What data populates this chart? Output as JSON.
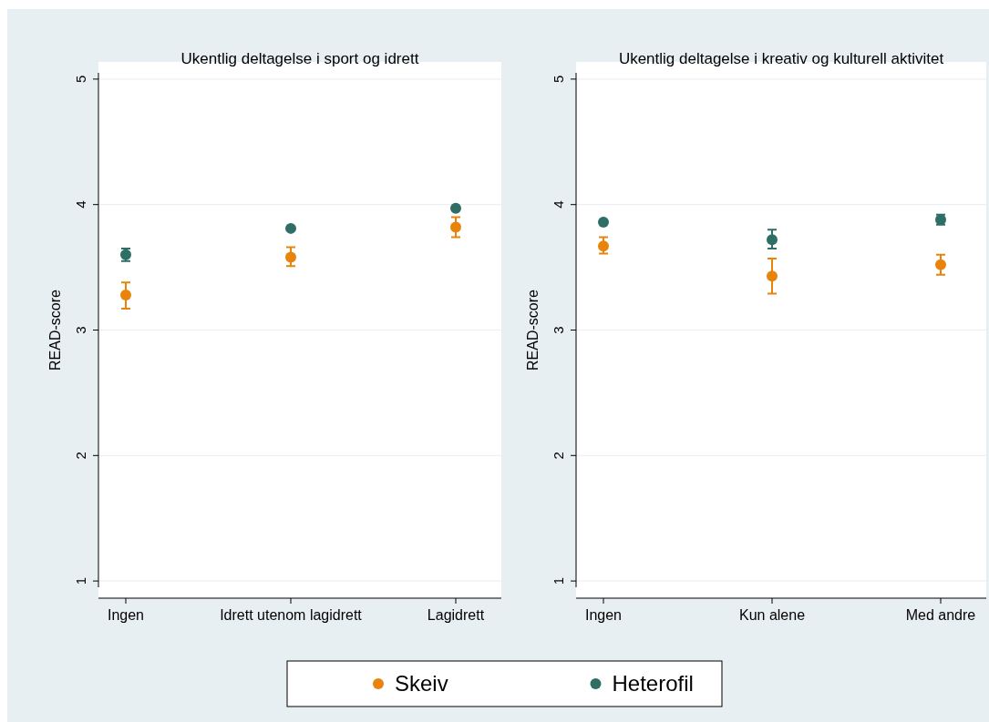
{
  "chart_data": [
    {
      "type": "scatter",
      "title": "Ukentlig deltagelse i sport og idrett",
      "ylabel": "READ-score",
      "categories": [
        "Ingen",
        "Idrett utenom lagidrett",
        "Lagidrett"
      ],
      "ylim": [
        0.95,
        5.05
      ],
      "yticks": [
        1,
        2,
        3,
        4,
        5
      ],
      "grid": "y",
      "marker": "circle",
      "legend": "bottom",
      "series": [
        {
          "name": "Skeiv",
          "color": "#e8840c",
          "values": [
            3.28,
            3.58,
            3.82
          ],
          "errors": [
            [
              3.17,
              3.38
            ],
            [
              3.51,
              3.66
            ],
            [
              3.74,
              3.9
            ]
          ]
        },
        {
          "name": "Heterofil",
          "color": "#2e6e65",
          "values": [
            3.6,
            3.81,
            3.97
          ],
          "errors": [
            [
              3.55,
              3.65
            ],
            null,
            null
          ]
        }
      ]
    },
    {
      "type": "scatter",
      "title": "Ukentlig deltagelse i kreativ og kulturell aktivitet",
      "ylabel": "READ-score",
      "categories": [
        "Ingen",
        "Kun alene",
        "Med andre"
      ],
      "ylim": [
        0.95,
        5.05
      ],
      "yticks": [
        1,
        2,
        3,
        4,
        5
      ],
      "grid": "y",
      "marker": "circle",
      "series": [
        {
          "color": "#e8840c",
          "values": [
            3.67,
            3.43,
            3.52
          ],
          "errors": [
            [
              3.61,
              3.74
            ],
            [
              3.29,
              3.57
            ],
            [
              3.44,
              3.6
            ]
          ]
        },
        {
          "color": "#2e6e65",
          "values": [
            3.86,
            3.72,
            3.88
          ],
          "errors": [
            null,
            [
              3.65,
              3.8
            ],
            [
              3.84,
              3.92
            ]
          ]
        }
      ]
    }
  ]
}
